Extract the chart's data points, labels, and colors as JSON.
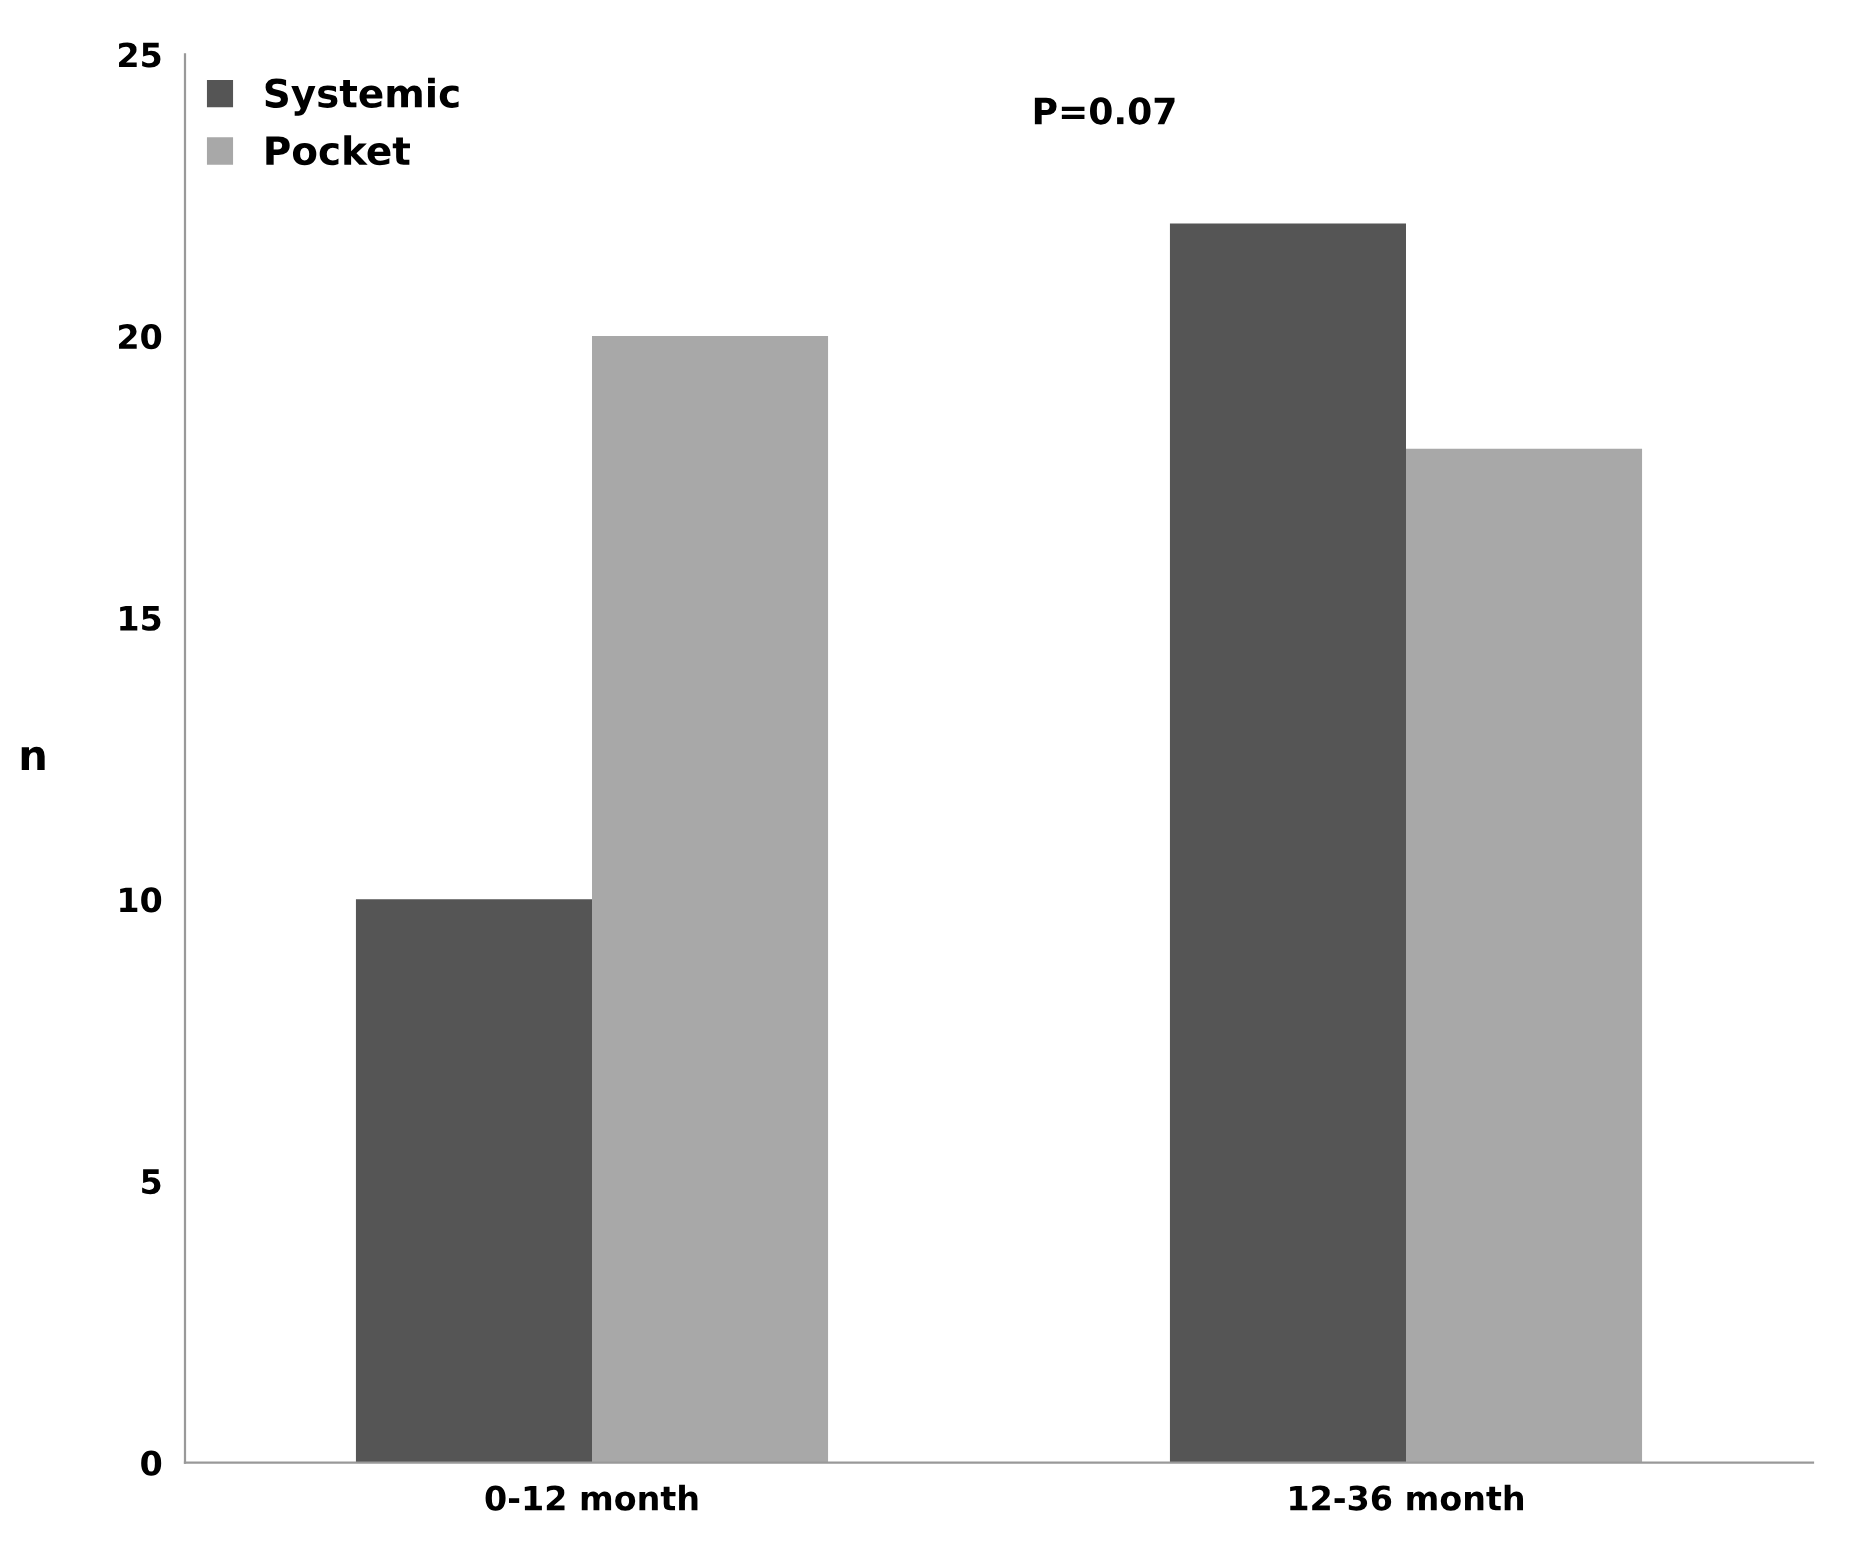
{
  "chart_data": {
    "type": "bar",
    "ylabel": "n",
    "categories": [
      "0-12 month",
      "12-36 month"
    ],
    "series": [
      {
        "name": "Systemic",
        "color": "#555555",
        "values": [
          10,
          22
        ]
      },
      {
        "name": "Pocket",
        "color": "#a8a8a8",
        "values": [
          20,
          18
        ]
      }
    ],
    "ylim": [
      0,
      25
    ],
    "yticks": [
      0,
      5,
      10,
      15,
      20,
      25
    ],
    "grid": false,
    "legend": "top left",
    "annotations": [
      {
        "text": "P=0.07"
      }
    ]
  }
}
